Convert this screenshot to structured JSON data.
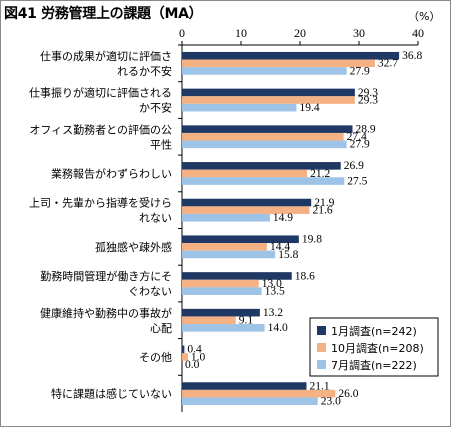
{
  "title": "図41 労務管理上の課題（MA）",
  "unit": "（%）",
  "chart_data": {
    "type": "bar",
    "orientation": "horizontal",
    "title": "図41 労務管理上の課題（MA）",
    "xlabel": "",
    "ylabel": "",
    "unit": "（%）",
    "xlim": [
      0,
      40
    ],
    "ticks": [
      0,
      10,
      20,
      30,
      40
    ],
    "grid": false,
    "legend_position": "bottom-right",
    "categories": [
      [
        "仕事の成果が適切に評価さ",
        "れるか不安"
      ],
      [
        "仕事振りが適切に評価される",
        "か不安"
      ],
      [
        "オフィス勤務者との評価の公",
        "平性"
      ],
      [
        "業務報告がわずらわしい"
      ],
      [
        "上司・先輩から指導を受けら",
        "れない"
      ],
      [
        "孤独感や疎外感"
      ],
      [
        "勤務時間管理が働き方にそ",
        "ぐわない"
      ],
      [
        "健康維持や勤務中の事故が",
        "心配"
      ],
      [
        "その他"
      ],
      [
        "特に課題は感じていない"
      ]
    ],
    "series": [
      {
        "name": "1月調査(n=242)",
        "color": "#1f3864",
        "values": [
          36.8,
          29.3,
          28.9,
          26.9,
          21.9,
          19.8,
          18.6,
          13.2,
          0.4,
          21.1
        ]
      },
      {
        "name": "10月調査(n=208)",
        "color": "#f4b183",
        "values": [
          32.7,
          29.3,
          27.4,
          21.2,
          21.6,
          14.4,
          13.0,
          9.1,
          1.0,
          26.0
        ]
      },
      {
        "name": "7月調査(n=222)",
        "color": "#9dc3e6",
        "values": [
          27.9,
          19.4,
          27.9,
          27.5,
          14.9,
          15.8,
          13.5,
          14.0,
          0.0,
          23.0
        ]
      }
    ]
  }
}
